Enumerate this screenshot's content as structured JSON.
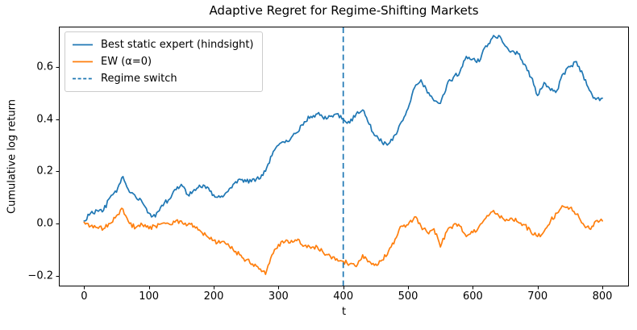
{
  "figure": {
    "title": "Adaptive Regret for Regime-Shifting Markets",
    "xlabel": "t",
    "ylabel": "Cumulative log return"
  },
  "colors": {
    "blue": "#1f77b4",
    "orange": "#ff7f0e",
    "axis": "#000000",
    "legend_border": "#cccccc",
    "background": "#ffffff"
  },
  "legend": {
    "position": "upper left",
    "items": [
      {
        "label": "Best static expert (hindsight)",
        "color": "#1f77b4",
        "dash": "solid"
      },
      {
        "label": "EW (α=0)",
        "color": "#ff7f0e",
        "dash": "solid"
      },
      {
        "label": "Regime switch",
        "color": "#1f77b4",
        "dash": "dashed"
      }
    ]
  },
  "chart_data": {
    "type": "line",
    "title": "Adaptive Regret for Regime-Shifting Markets",
    "xlabel": "t",
    "ylabel": "Cumulative log return",
    "grid": false,
    "legend_position": "upper left",
    "xlim": [
      -39,
      841
    ],
    "ylim": [
      -0.241,
      0.754
    ],
    "x_ticks": [
      0,
      100,
      200,
      300,
      400,
      500,
      600,
      700,
      800
    ],
    "x_tick_labels": [
      "0",
      "100",
      "200",
      "300",
      "400",
      "500",
      "600",
      "700",
      "800"
    ],
    "y_ticks": [
      -0.2,
      0.0,
      0.2,
      0.4,
      0.6
    ],
    "y_tick_labels": [
      "−0.2",
      "0.0",
      "0.2",
      "0.4",
      "0.6"
    ],
    "vline": {
      "x": 400,
      "label": "Regime switch",
      "color": "#1f77b4",
      "style": "dashed"
    },
    "x": [
      0,
      10,
      20,
      30,
      40,
      50,
      60,
      70,
      80,
      90,
      100,
      110,
      120,
      130,
      140,
      150,
      160,
      170,
      180,
      190,
      200,
      210,
      220,
      230,
      240,
      250,
      260,
      270,
      280,
      290,
      300,
      310,
      320,
      330,
      340,
      350,
      360,
      370,
      380,
      390,
      400,
      410,
      420,
      430,
      440,
      450,
      460,
      470,
      480,
      490,
      500,
      510,
      520,
      530,
      540,
      550,
      560,
      570,
      580,
      590,
      600,
      610,
      620,
      630,
      640,
      650,
      660,
      670,
      680,
      690,
      700,
      710,
      720,
      730,
      740,
      750,
      760,
      770,
      780,
      790,
      800
    ],
    "series": [
      {
        "name": "Best static expert (hindsight)",
        "color": "#1f77b4",
        "values": [
          0.01,
          0.04,
          0.05,
          0.05,
          0.1,
          0.12,
          0.18,
          0.12,
          0.1,
          0.08,
          0.04,
          0.025,
          0.07,
          0.09,
          0.13,
          0.15,
          0.11,
          0.13,
          0.14,
          0.14,
          0.11,
          0.1,
          0.12,
          0.15,
          0.17,
          0.16,
          0.17,
          0.17,
          0.2,
          0.26,
          0.3,
          0.31,
          0.33,
          0.35,
          0.39,
          0.41,
          0.42,
          0.4,
          0.41,
          0.42,
          0.4,
          0.385,
          0.42,
          0.435,
          0.38,
          0.335,
          0.31,
          0.305,
          0.34,
          0.39,
          0.44,
          0.52,
          0.55,
          0.5,
          0.47,
          0.46,
          0.53,
          0.56,
          0.58,
          0.64,
          0.63,
          0.62,
          0.68,
          0.71,
          0.72,
          0.68,
          0.66,
          0.65,
          0.61,
          0.56,
          0.49,
          0.54,
          0.51,
          0.51,
          0.575,
          0.6,
          0.62,
          0.57,
          0.51,
          0.475,
          0.48
        ]
      },
      {
        "name": "EW (α=0)",
        "color": "#ff7f0e",
        "values": [
          0.005,
          -0.01,
          -0.015,
          -0.02,
          0.0,
          0.03,
          0.055,
          0.0,
          -0.015,
          -0.005,
          -0.02,
          -0.01,
          0.0,
          0.0,
          0.005,
          0.01,
          -0.005,
          -0.01,
          -0.03,
          -0.05,
          -0.065,
          -0.075,
          -0.08,
          -0.1,
          -0.12,
          -0.14,
          -0.155,
          -0.175,
          -0.195,
          -0.12,
          -0.08,
          -0.07,
          -0.065,
          -0.06,
          -0.085,
          -0.095,
          -0.09,
          -0.115,
          -0.125,
          -0.135,
          -0.145,
          -0.155,
          -0.165,
          -0.12,
          -0.145,
          -0.155,
          -0.14,
          -0.105,
          -0.06,
          -0.01,
          -0.005,
          0.025,
          -0.01,
          -0.035,
          -0.02,
          -0.09,
          -0.03,
          -0.005,
          -0.01,
          -0.05,
          -0.035,
          -0.01,
          0.02,
          0.045,
          0.03,
          0.01,
          0.02,
          0.005,
          -0.005,
          -0.035,
          -0.05,
          -0.03,
          0.01,
          0.04,
          0.065,
          0.06,
          0.035,
          0.0,
          -0.02,
          0.01,
          0.01
        ]
      }
    ]
  }
}
